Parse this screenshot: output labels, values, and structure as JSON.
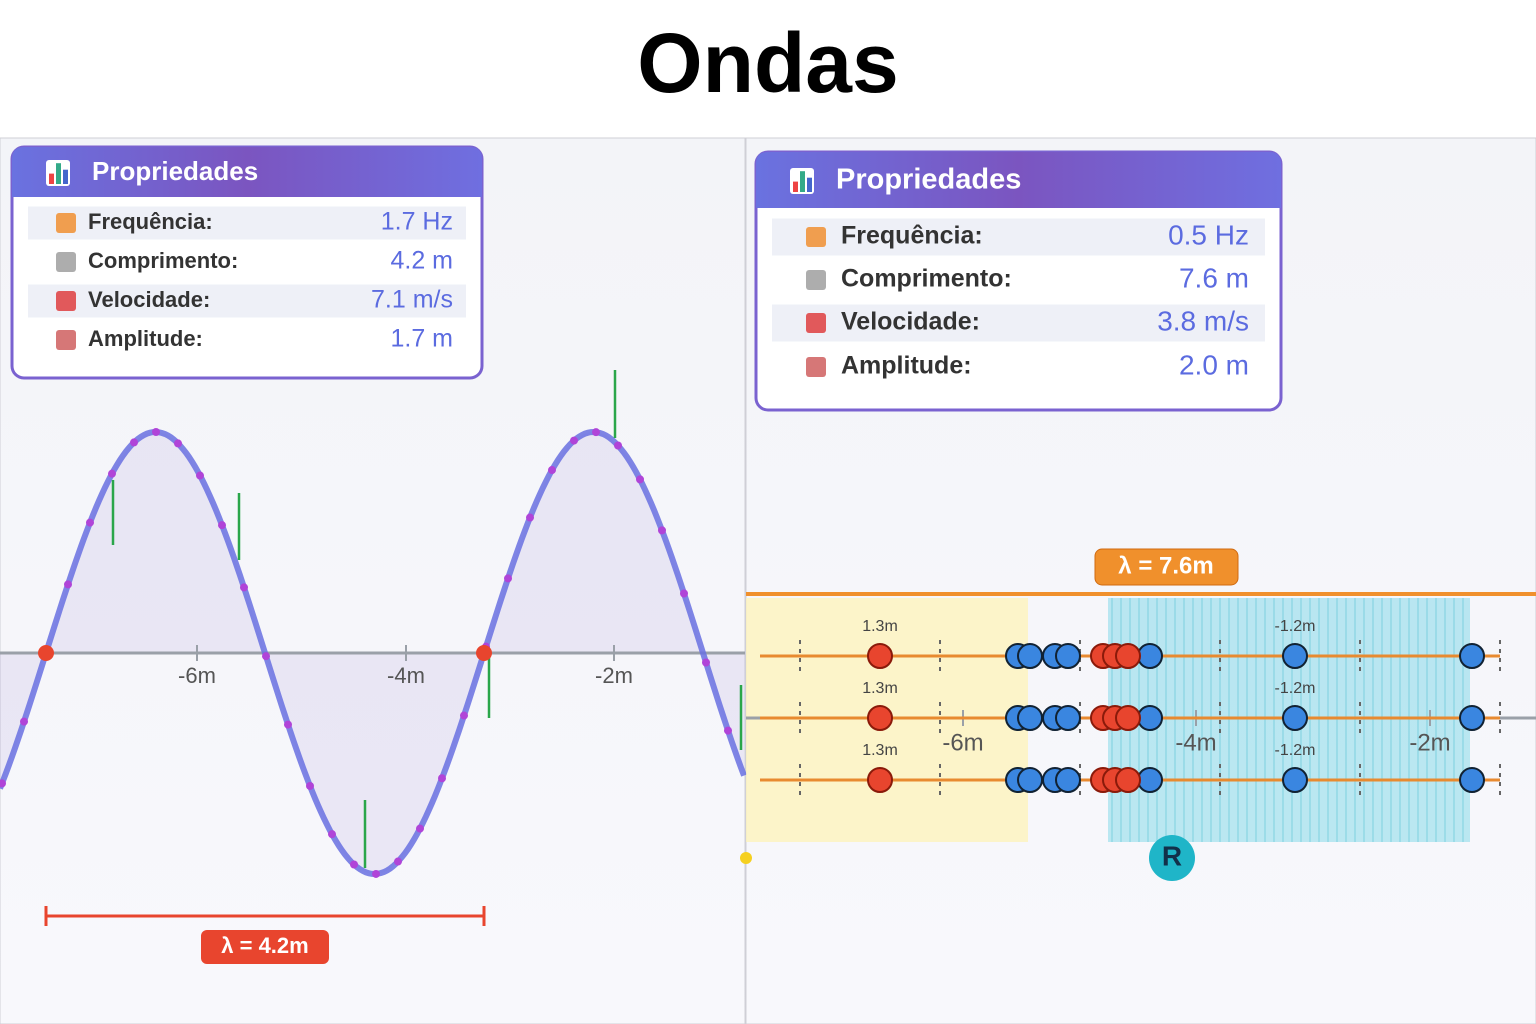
{
  "title": "Ondas",
  "panels": [
    {
      "heading": "Propriedades",
      "properties": [
        {
          "label": "Frequência:",
          "value": "1.7 Hz"
        },
        {
          "label": "Comprimento:",
          "value": "4.2 m"
        },
        {
          "label": "Velocidade:",
          "value": "7.1 m/s"
        },
        {
          "label": "Amplitude:",
          "value": "1.7 m"
        }
      ],
      "axis_labels": [
        "-6m",
        "-4m",
        "-2m"
      ],
      "wavelength_label": "λ = 4.2m"
    },
    {
      "heading": "Propriedades",
      "properties": [
        {
          "label": "Frequência:",
          "value": "0.5 Hz"
        },
        {
          "label": "Comprimento:",
          "value": "7.6 m"
        },
        {
          "label": "Velocidade:",
          "value": "3.8 m/s"
        },
        {
          "label": "Amplitude:",
          "value": "2.0 m"
        }
      ],
      "axis_labels": [
        "-6m",
        "-4m",
        "-2m"
      ],
      "wavelength_label": "λ = 7.6m",
      "rows": [
        {
          "left_label": "1.3m",
          "right_label": "-1.2m"
        },
        {
          "left_label": "1.3m",
          "right_label": "-1.2m"
        },
        {
          "left_label": "1.3m",
          "right_label": "-1.2m"
        }
      ],
      "marker": "R"
    }
  ]
}
